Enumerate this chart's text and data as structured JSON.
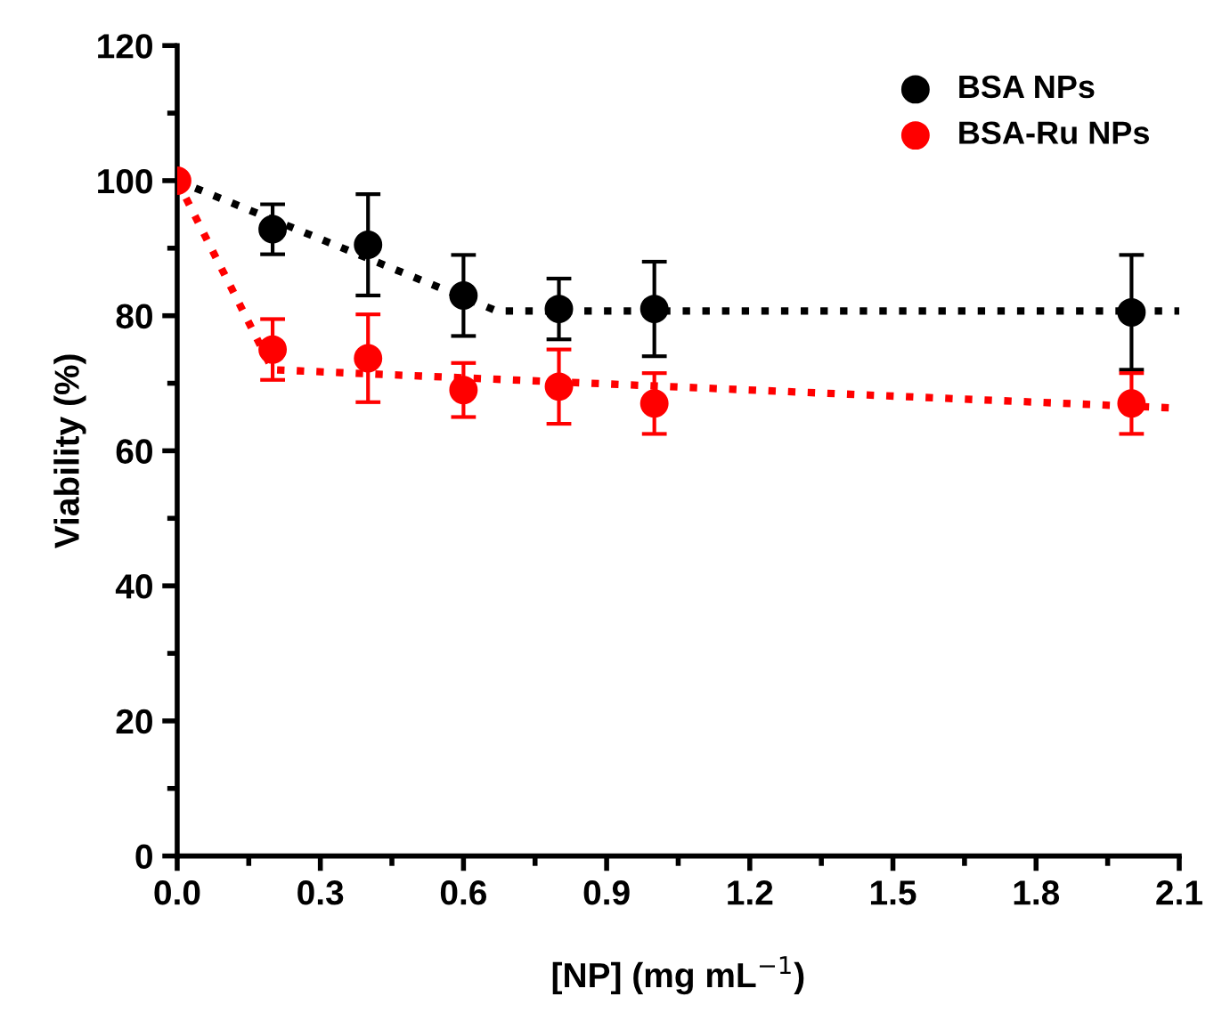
{
  "chart_data": {
    "type": "scatter",
    "xlabel": "[NP] (mg mL$^{−1}$)",
    "ylabel": "Viability (%)",
    "xlim": [
      0,
      2.1
    ],
    "xticks": [
      {
        "value": 0,
        "label": "0.0"
      },
      0.3,
      0.6,
      0.9,
      1.2,
      1.5,
      1.8,
      2.1
    ],
    "ylim": [
      0,
      120
    ],
    "yticks": [
      0,
      20,
      40,
      60,
      80,
      100,
      120
    ],
    "grid": false,
    "legend": "top right",
    "marker": "circle",
    "series": [
      {
        "name": "BSA NPs",
        "color": "#000000",
        "x": [
          0.2,
          0.4,
          0.6,
          0.8,
          1.0,
          2.0
        ],
        "values": [
          92.8,
          90.5,
          83,
          81,
          81,
          80.5
        ],
        "errors": [
          3.7,
          7.5,
          6,
          4.5,
          7,
          8.5
        ]
      },
      {
        "name": "BSA-Ru NPs",
        "color": "#ff0000",
        "x": [
          0,
          0.2,
          0.4,
          0.6,
          0.8,
          1.0,
          2.0
        ],
        "values": [
          100,
          75,
          73.7,
          69,
          69.5,
          67,
          67
        ],
        "errors": [
          null,
          4.5,
          6.5,
          4,
          5.5,
          4.5,
          4.5
        ]
      },
      {
        "color": "#000000",
        "type": "line",
        "line_style": "dotted",
        "marker": "none",
        "x": [
          0,
          0.67,
          2.1
        ],
        "values": [
          100,
          80.7,
          80.7
        ]
      },
      {
        "color": "#ff0000",
        "type": "line",
        "line_style": "dotted",
        "marker": "none",
        "x": [
          0,
          0.2,
          2.1
        ],
        "values": [
          100,
          72,
          66.3
        ]
      }
    ]
  }
}
